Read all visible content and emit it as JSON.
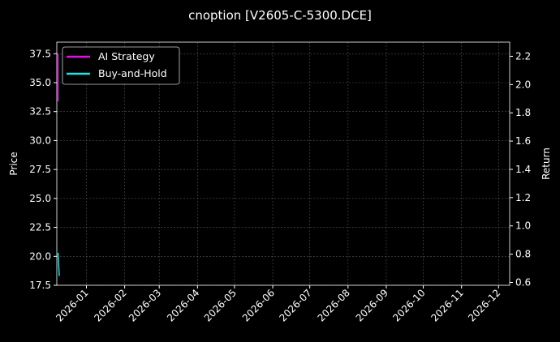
{
  "chart_data": {
    "type": "line",
    "title": "cnoption [V2605-C-5300.DCE]",
    "ylabel": "Price",
    "y2label": "Return",
    "ylim": [
      17.5,
      38.5
    ],
    "y2lim": [
      0.58,
      2.3
    ],
    "xlim": [
      "2025-12-08",
      "2026-12-10"
    ],
    "yticks": [
      "17.5",
      "20.0",
      "22.5",
      "25.0",
      "27.5",
      "30.0",
      "32.5",
      "35.0",
      "37.5"
    ],
    "y2ticks": [
      "0.6",
      "0.8",
      "1.0",
      "1.2",
      "1.4",
      "1.6",
      "1.8",
      "2.0",
      "2.2"
    ],
    "xticks": [
      "2026-01",
      "2026-02",
      "2026-03",
      "2026-04",
      "2026-05",
      "2026-06",
      "2026-07",
      "2026-08",
      "2026-09",
      "2026-10",
      "2026-11",
      "2026-12"
    ],
    "grid": true,
    "legend_placement": "top-left",
    "series": [
      {
        "name": "AI Strategy",
        "axis": "right",
        "color": "#e010e0",
        "x": [
          "2025-12-09",
          "2025-12-09"
        ],
        "values": [
          2.22,
          1.88
        ]
      },
      {
        "name": "Buy-and-Hold",
        "axis": "left",
        "color": "#20e0e8",
        "x": [
          "2025-12-09",
          "2025-12-10"
        ],
        "values": [
          20.3,
          18.3
        ]
      }
    ]
  }
}
